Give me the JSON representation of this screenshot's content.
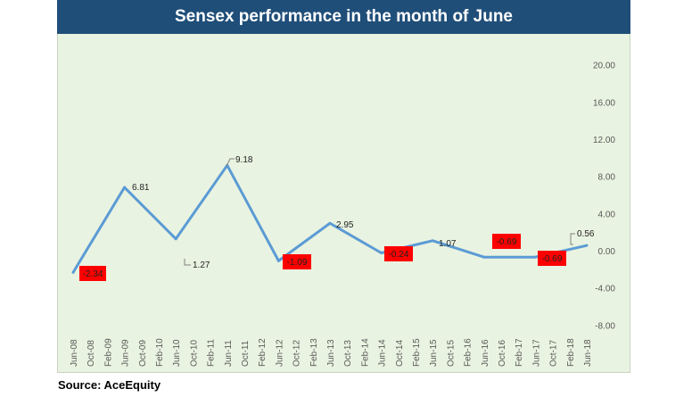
{
  "source_label": "Source: AceEquity",
  "colors": {
    "title_bg": "#1f4e79",
    "plot_bg": "#e9f3e1",
    "line": "#5b9bd5",
    "neg_label_bg": "#ff0000"
  },
  "chart_data": {
    "type": "line",
    "title": "Sensex performance in the month of June",
    "ylim": [
      -8,
      20
    ],
    "yticks": [
      "20.00",
      "16.00",
      "12.00",
      "8.00",
      "4.00",
      "0.00",
      "-4.00",
      "-8.00"
    ],
    "ytick_values": [
      20,
      16,
      12,
      8,
      4,
      0,
      -4,
      -8
    ],
    "y_axis_position": "right",
    "grid": false,
    "categories": [
      "Jun-08",
      "Oct-08",
      "Feb-09",
      "Jun-09",
      "Oct-09",
      "Feb-10",
      "Jun-10",
      "Oct-10",
      "Feb-11",
      "Jun-11",
      "Oct-11",
      "Feb-12",
      "Jun-12",
      "Oct-12",
      "Feb-13",
      "Jun-13",
      "Oct-13",
      "Feb-14",
      "Jun-14",
      "Oct-14",
      "Feb-15",
      "Jun-15",
      "Oct-15",
      "Feb-16",
      "Jun-16",
      "Oct-16",
      "Feb-17",
      "Jun-17",
      "Oct-17",
      "Feb-18",
      "Jun-18"
    ],
    "series": [
      {
        "x": [
          0,
          3,
          6,
          9,
          12,
          15,
          18,
          21,
          24,
          27,
          30
        ],
        "values": [
          -2.34,
          6.81,
          1.27,
          9.18,
          -1.09,
          2.95,
          -0.24,
          1.07,
          -0.69,
          -0.69,
          0.56
        ],
        "data_labels": [
          "-2.34",
          "6.81",
          "1.27",
          "9.18",
          "-1.09",
          "2.95",
          "-0.24",
          "1.07",
          "-0.69",
          "-0.69",
          "0.56"
        ]
      }
    ]
  }
}
